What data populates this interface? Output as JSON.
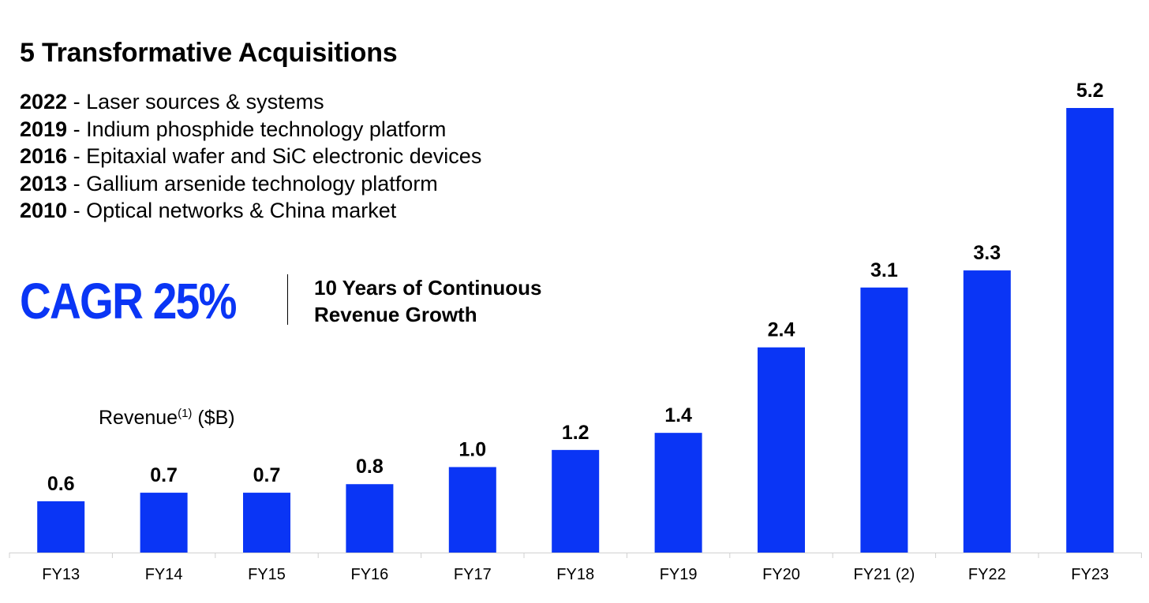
{
  "colors": {
    "accent": "#0a35f5",
    "text": "#000000",
    "axis": "#d0d0d0"
  },
  "header": {
    "title": "5 Transformative Acquisitions",
    "acquisitions": [
      {
        "year": "2022",
        "text": " - Laser sources & systems"
      },
      {
        "year": "2019",
        "text": " - Indium phosphide technology platform"
      },
      {
        "year": "2016",
        "text": " - Epitaxial wafer and SiC electronic devices"
      },
      {
        "year": "2013",
        "text": " - Gallium arsenide technology platform"
      },
      {
        "year": "2010",
        "text": " - Optical networks & China market"
      }
    ]
  },
  "cagr": {
    "label": "CAGR 25%",
    "line1": "10 Years of Continuous",
    "line2": "Revenue Growth"
  },
  "revenue_label": {
    "main": "Revenue",
    "sup": "(1)",
    "unit": " ($B)"
  },
  "chart_data": {
    "type": "bar",
    "categories": [
      "FY13",
      "FY14",
      "FY15",
      "FY16",
      "FY17",
      "FY18",
      "FY19",
      "FY20",
      "FY21 (2)",
      "FY22",
      "FY23"
    ],
    "values": [
      0.6,
      0.7,
      0.7,
      0.8,
      1.0,
      1.2,
      1.4,
      2.4,
      3.1,
      3.3,
      5.2
    ],
    "data_labels": [
      "0.6",
      "0.7",
      "0.7",
      "0.8",
      "1.0",
      "1.2",
      "1.4",
      "2.4",
      "3.1",
      "3.3",
      "5.2"
    ],
    "ylabel": "Revenue(1) ($B)",
    "ylim": [
      0,
      5.2
    ],
    "grid": false,
    "legend": "none"
  }
}
